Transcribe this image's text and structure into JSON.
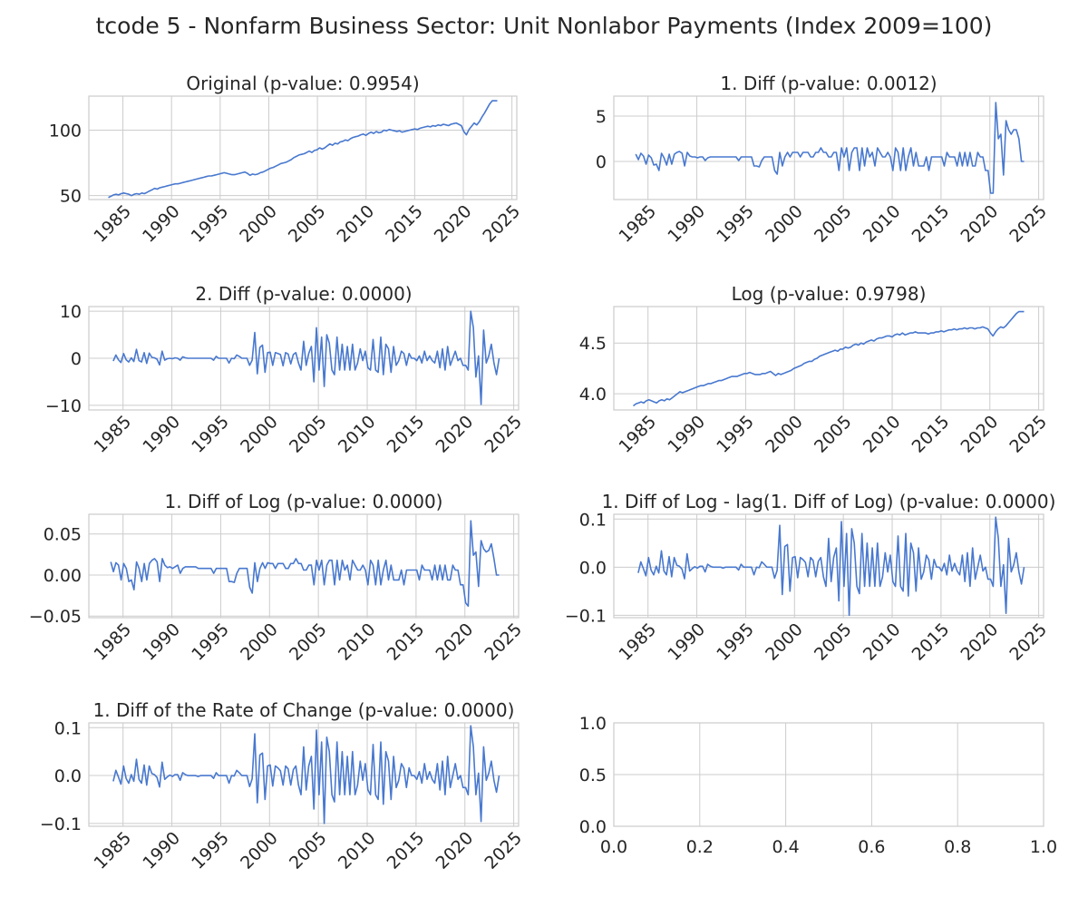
{
  "figure": {
    "suptitle": "tcode 5 - Nonfarm Business Sector: Unit Nonlabor Payments (Index 2009=100)",
    "line_color": "#4878cf",
    "grid_color": "#cccccc",
    "axis_color": "#cccccc"
  },
  "chart_data": [
    {
      "type": "line",
      "title": "Original (p-value: 0.9954)",
      "grid": true,
      "xlim": [
        1981.5,
        2025.5
      ],
      "ylim": [
        47,
        126
      ],
      "xticks": [
        1985,
        1990,
        1995,
        2000,
        2005,
        2010,
        2015,
        2020,
        2025
      ],
      "yticks": [
        50,
        100
      ],
      "ytick_labels": [
        "50",
        "100"
      ],
      "x_start": 1983.5,
      "x_end": 2023.5,
      "values": [
        48.5,
        49.5,
        50.5,
        51.0,
        50.5,
        51.5,
        52.0,
        51.5,
        51.0,
        50.0,
        51.0,
        51.5,
        51.0,
        52.0,
        51.5,
        52.5,
        53.5,
        54.5,
        55.5,
        55.0,
        56.0,
        56.5,
        57.0,
        57.5,
        58.0,
        58.5,
        59.0,
        59.0,
        59.5,
        60.0,
        60.5,
        61.0,
        61.5,
        62.0,
        62.5,
        63.0,
        63.5,
        64.0,
        64.5,
        65.0,
        65.0,
        65.5,
        66.0,
        66.5,
        67.0,
        67.5,
        67.0,
        66.5,
        66.0,
        66.0,
        66.5,
        67.0,
        67.5,
        68.0,
        67.0,
        65.5,
        66.5,
        66.0,
        66.5,
        67.5,
        68.0,
        69.0,
        70.0,
        71.0,
        71.5,
        72.5,
        73.5,
        74.5,
        75.0,
        75.5,
        76.5,
        77.5,
        79.0,
        80.0,
        81.0,
        81.5,
        82.0,
        83.0,
        84.0,
        83.0,
        84.5,
        85.0,
        86.5,
        85.5,
        86.5,
        88.0,
        89.5,
        88.5,
        90.0,
        89.5,
        91.0,
        91.5,
        92.5,
        92.0,
        93.5,
        94.5,
        95.0,
        95.5,
        96.5,
        97.0,
        96.0,
        97.5,
        98.5,
        97.5,
        99.0,
        98.0,
        98.5,
        100.0,
        99.5,
        100.5,
        100.0,
        99.5,
        99.0,
        99.5,
        98.5,
        99.0,
        99.5,
        100.0,
        100.5,
        101.0,
        100.5,
        101.5,
        102.0,
        102.5,
        103.0,
        102.5,
        103.5,
        103.0,
        104.0,
        103.5,
        104.5,
        104.0,
        103.5,
        104.5,
        105.0,
        105.5,
        104.5,
        103.5,
        99.0,
        96.5,
        100.5,
        103.0,
        105.5,
        104.0,
        106.5,
        110.0,
        113.0,
        116.5,
        120.0,
        122.5,
        122.5,
        122.5
      ]
    },
    {
      "type": "line",
      "title": "1. Diff (p-value: 0.0012)",
      "grid": true,
      "xlim": [
        1981.5,
        2025.5
      ],
      "ylim": [
        -4.2,
        7.2
      ],
      "xticks": [
        1985,
        1990,
        1995,
        2000,
        2005,
        2010,
        2015,
        2020,
        2025
      ],
      "yticks": [
        0,
        5
      ],
      "ytick_labels": [
        "0",
        "5"
      ],
      "x_start": 1983.75,
      "x_end": 2023.5,
      "values": [
        0.8,
        0.2,
        0.9,
        0.6,
        -0.3,
        0.7,
        0.4,
        -0.4,
        -0.3,
        -1.0,
        0.9,
        0.4,
        -0.4,
        0.8,
        -0.3,
        0.8,
        1.0,
        1.1,
        0.9,
        -0.5,
        1.0,
        0.6,
        0.5,
        0.5,
        0.4,
        0.5,
        0.5,
        0.1,
        0.4,
        0.5,
        0.5,
        0.5,
        0.5,
        0.5,
        0.5,
        0.5,
        0.5,
        0.5,
        0.5,
        0.5,
        0.1,
        0.5,
        0.5,
        0.5,
        0.5,
        0.5,
        -0.5,
        -0.5,
        -0.6,
        0.1,
        0.5,
        0.5,
        0.5,
        0.5,
        -1.0,
        -1.4,
        1.0,
        -0.5,
        0.5,
        1.0,
        0.5,
        1.0,
        1.0,
        1.0,
        0.5,
        1.0,
        1.0,
        1.0,
        0.5,
        0.5,
        1.0,
        1.0,
        1.5,
        1.0,
        1.0,
        0.5,
        0.5,
        1.0,
        1.0,
        -1.0,
        1.5,
        0.5,
        1.5,
        -1.0,
        1.0,
        1.5,
        1.5,
        -1.0,
        1.5,
        -0.5,
        1.5,
        0.5,
        1.0,
        -0.5,
        1.5,
        1.0,
        0.5,
        0.5,
        1.0,
        0.5,
        -1.0,
        1.5,
        1.0,
        -1.0,
        1.5,
        -1.0,
        0.5,
        1.5,
        -0.5,
        1.0,
        -0.5,
        -0.5,
        -0.5,
        0.5,
        -1.0,
        0.5,
        0.5,
        0.5,
        0.5,
        0.5,
        -0.5,
        1.0,
        0.5,
        0.5,
        0.5,
        -0.5,
        1.0,
        -0.5,
        1.0,
        -0.5,
        1.0,
        -0.5,
        -0.5,
        1.0,
        0.5,
        0.5,
        -1.0,
        -1.0,
        -3.5,
        -3.5,
        6.5,
        2.5,
        3.0,
        -1.5,
        4.5,
        3.5,
        3.0,
        3.5,
        3.5,
        2.5,
        0.0,
        0.0
      ]
    },
    {
      "type": "line",
      "title": "2. Diff (p-value: 0.0000)",
      "grid": true,
      "xlim": [
        1981.5,
        2025.5
      ],
      "ylim": [
        -11,
        11
      ],
      "xticks": [
        1985,
        1990,
        1995,
        2000,
        2005,
        2010,
        2015,
        2020,
        2025
      ],
      "yticks": [
        -10,
        0,
        10
      ],
      "ytick_labels": [
        "−10",
        "0",
        "10"
      ],
      "x_start": 1984.0,
      "x_end": 2023.5,
      "values": [
        -0.6,
        0.7,
        -0.3,
        -0.9,
        1.0,
        -0.3,
        -0.8,
        0.1,
        -0.7,
        1.9,
        -0.5,
        -0.8,
        1.2,
        -1.1,
        1.1,
        0.2,
        0.1,
        -0.2,
        -1.4,
        1.5,
        -0.4,
        -0.1,
        0.0,
        -0.1,
        0.1,
        0.0,
        -0.4,
        0.3,
        0.1,
        0.0,
        0.0,
        0.0,
        0.0,
        0.0,
        0.0,
        0.0,
        0.0,
        0.0,
        0.0,
        -0.4,
        0.4,
        0.0,
        0.0,
        0.0,
        0.0,
        -1.0,
        0.0,
        -0.1,
        0.7,
        0.4,
        0.0,
        0.0,
        0.0,
        -1.5,
        -0.4,
        5.5,
        -3.3,
        2.3,
        2.8,
        -3.0,
        1.2,
        1.3,
        -1.5,
        1.2,
        1.0,
        0.8,
        -1.6,
        1.2,
        0.9,
        -1.2,
        0.8,
        1.2,
        -1.0,
        -2.5,
        3.6,
        -1.5,
        1.0,
        2.5,
        -5.0,
        6.5,
        -2.5,
        4.5,
        -6.0,
        5.0,
        3.2,
        -2.5,
        -3.5,
        4.5,
        -2.5,
        3.0,
        -2.5,
        2.5,
        -2.5,
        3.0,
        -2.5,
        -1.0,
        2.0,
        -0.5,
        1.5,
        -2.0,
        -2.5,
        4.0,
        -2.5,
        -3.0,
        4.5,
        -3.5,
        3.0,
        2.0,
        -3.0,
        2.5,
        -1.5,
        -0.5,
        1.5,
        1.0,
        -1.5,
        1.0,
        0.0,
        0.0,
        -0.5,
        0.5,
        -1.0,
        1.5,
        -0.5,
        0.5,
        -0.5,
        -1.0,
        1.5,
        -2.0,
        2.0,
        -2.5,
        2.5,
        -1.5,
        0.0,
        1.5,
        -0.5,
        0.0,
        -1.5,
        -1.5,
        -2.5,
        10.0,
        6.5,
        -4.0,
        0.5,
        -9.8,
        6.0,
        -1.0,
        0.5,
        3.0,
        -1.0,
        -3.5,
        0.0
      ]
    },
    {
      "type": "line",
      "title": "Log (p-value: 0.9798)",
      "grid": true,
      "xlim": [
        1981.5,
        2025.5
      ],
      "ylim": [
        3.84,
        4.86
      ],
      "xticks": [
        1985,
        1990,
        1995,
        2000,
        2005,
        2010,
        2015,
        2020,
        2025
      ],
      "yticks": [
        4.0,
        4.5
      ],
      "ytick_labels": [
        "4.0",
        "4.5"
      ],
      "x_start": 1983.5,
      "x_end": 2023.5,
      "values": [
        3.88,
        3.9,
        3.91,
        3.92,
        3.91,
        3.93,
        3.94,
        3.93,
        3.92,
        3.91,
        3.93,
        3.94,
        3.93,
        3.95,
        3.94,
        3.96,
        3.98,
        4.0,
        4.02,
        4.01,
        4.02,
        4.03,
        4.04,
        4.05,
        4.06,
        4.07,
        4.08,
        4.08,
        4.09,
        4.1,
        4.1,
        4.11,
        4.12,
        4.13,
        4.13,
        4.14,
        4.15,
        4.16,
        4.17,
        4.17,
        4.17,
        4.18,
        4.19,
        4.2,
        4.2,
        4.21,
        4.2,
        4.19,
        4.19,
        4.19,
        4.2,
        4.2,
        4.21,
        4.22,
        4.2,
        4.18,
        4.2,
        4.19,
        4.2,
        4.21,
        4.22,
        4.23,
        4.25,
        4.26,
        4.27,
        4.28,
        4.3,
        4.31,
        4.32,
        4.32,
        4.34,
        4.35,
        4.37,
        4.38,
        4.39,
        4.4,
        4.41,
        4.42,
        4.43,
        4.42,
        4.44,
        4.44,
        4.46,
        4.45,
        4.46,
        4.48,
        4.49,
        4.48,
        4.5,
        4.49,
        4.51,
        4.52,
        4.53,
        4.52,
        4.54,
        4.55,
        4.55,
        4.56,
        4.57,
        4.57,
        4.56,
        4.58,
        4.59,
        4.58,
        4.6,
        4.58,
        4.59,
        4.6,
        4.6,
        4.61,
        4.6,
        4.6,
        4.6,
        4.6,
        4.59,
        4.6,
        4.6,
        4.61,
        4.61,
        4.62,
        4.61,
        4.62,
        4.63,
        4.63,
        4.64,
        4.63,
        4.64,
        4.64,
        4.65,
        4.64,
        4.65,
        4.65,
        4.64,
        4.65,
        4.65,
        4.66,
        4.65,
        4.64,
        4.6,
        4.57,
        4.61,
        4.64,
        4.66,
        4.65,
        4.67,
        4.7,
        4.73,
        4.76,
        4.79,
        4.81,
        4.81,
        4.81
      ]
    },
    {
      "type": "line",
      "title": "1. Diff of Log (p-value: 0.0000)",
      "grid": true,
      "xlim": [
        1981.5,
        2025.5
      ],
      "ylim": [
        -0.052,
        0.074
      ],
      "xticks": [
        1985,
        1990,
        1995,
        2000,
        2005,
        2010,
        2015,
        2020,
        2025
      ],
      "yticks": [
        -0.05,
        0.0,
        0.05
      ],
      "ytick_labels": [
        "−0.05",
        "0.00",
        "0.05"
      ],
      "x_start": 1983.75,
      "x_end": 2023.5,
      "values": [
        0.016,
        0.004,
        0.015,
        0.012,
        -0.006,
        0.014,
        0.008,
        -0.008,
        -0.006,
        -0.018,
        0.016,
        0.008,
        -0.008,
        0.014,
        -0.006,
        0.014,
        0.018,
        0.02,
        0.016,
        -0.008,
        0.02,
        0.012,
        0.009,
        0.01,
        0.008,
        0.01,
        0.012,
        0.002,
        0.008,
        0.01,
        0.01,
        0.01,
        0.01,
        0.01,
        0.008,
        0.008,
        0.008,
        0.008,
        0.008,
        0.008,
        0.002,
        0.008,
        0.008,
        0.008,
        0.008,
        0.008,
        -0.008,
        -0.008,
        -0.009,
        0.002,
        0.008,
        0.008,
        0.008,
        0.008,
        -0.015,
        -0.022,
        0.015,
        -0.008,
        0.008,
        0.015,
        0.008,
        0.015,
        0.014,
        0.014,
        0.008,
        0.014,
        0.014,
        0.014,
        0.008,
        0.008,
        0.014,
        0.014,
        0.02,
        0.014,
        0.014,
        0.006,
        0.006,
        0.012,
        0.012,
        -0.012,
        0.018,
        0.006,
        0.018,
        -0.012,
        0.012,
        0.018,
        0.018,
        -0.012,
        0.018,
        -0.006,
        0.018,
        0.006,
        0.012,
        -0.006,
        0.018,
        0.012,
        0.006,
        0.006,
        0.012,
        0.006,
        -0.012,
        0.018,
        0.012,
        -0.012,
        0.018,
        -0.012,
        0.006,
        0.018,
        -0.006,
        0.012,
        -0.006,
        -0.006,
        -0.006,
        0.006,
        -0.012,
        0.006,
        0.006,
        0.006,
        0.006,
        0.006,
        -0.006,
        0.012,
        0.006,
        0.006,
        0.006,
        -0.006,
        0.012,
        -0.006,
        0.012,
        -0.006,
        0.012,
        -0.006,
        -0.006,
        0.012,
        0.006,
        0.006,
        -0.012,
        -0.012,
        -0.034,
        -0.038,
        0.066,
        0.024,
        0.028,
        -0.014,
        0.042,
        0.032,
        0.028,
        0.03,
        0.038,
        0.02,
        0.0,
        0.0
      ]
    },
    {
      "type": "line",
      "title": "1. Diff of Log - lag(1. Diff of Log) (p-value: 0.0000)",
      "grid": true,
      "xlim": [
        1981.5,
        2025.5
      ],
      "ylim": [
        -0.105,
        0.11
      ],
      "xticks": [
        1985,
        1990,
        1995,
        2000,
        2005,
        2010,
        2015,
        2020,
        2025
      ],
      "yticks": [
        -0.1,
        0.0,
        0.1
      ],
      "ytick_labels": [
        "−0.1",
        "0.0",
        "0.1"
      ],
      "x_start": 1984.0,
      "x_end": 2023.5,
      "values": [
        -0.012,
        0.011,
        -0.003,
        -0.018,
        0.02,
        -0.006,
        -0.016,
        0.002,
        -0.012,
        0.034,
        -0.008,
        -0.016,
        0.022,
        -0.02,
        0.02,
        0.004,
        0.002,
        -0.004,
        -0.024,
        0.028,
        -0.008,
        -0.003,
        0.001,
        -0.002,
        0.002,
        0.002,
        -0.01,
        0.006,
        0.002,
        0.0,
        0.0,
        0.0,
        0.0,
        -0.002,
        0.0,
        0.0,
        0.0,
        0.0,
        0.0,
        -0.006,
        0.006,
        0.0,
        0.0,
        0.0,
        0.0,
        -0.016,
        0.0,
        -0.001,
        0.011,
        0.006,
        0.0,
        0.0,
        0.0,
        -0.023,
        -0.007,
        0.087,
        -0.057,
        0.043,
        0.047,
        -0.05,
        0.02,
        0.022,
        -0.022,
        0.02,
        0.016,
        0.01,
        -0.02,
        0.02,
        0.014,
        -0.02,
        0.012,
        0.02,
        -0.02,
        -0.04,
        0.06,
        -0.03,
        0.02,
        0.04,
        -0.07,
        0.095,
        -0.04,
        0.07,
        -0.1,
        0.08,
        0.05,
        -0.04,
        -0.055,
        0.07,
        -0.04,
        0.05,
        -0.04,
        0.04,
        -0.04,
        0.05,
        -0.04,
        -0.02,
        0.03,
        -0.01,
        0.025,
        -0.03,
        -0.04,
        0.065,
        -0.04,
        -0.05,
        0.07,
        -0.06,
        0.05,
        0.03,
        -0.05,
        0.04,
        -0.025,
        -0.01,
        0.025,
        0.015,
        -0.025,
        0.016,
        0.0,
        0.0,
        -0.008,
        0.008,
        -0.016,
        0.025,
        -0.008,
        0.008,
        -0.008,
        -0.016,
        0.025,
        -0.03,
        0.03,
        -0.04,
        0.04,
        -0.025,
        0.0,
        0.025,
        -0.008,
        0.0,
        -0.025,
        -0.025,
        -0.04,
        0.104,
        0.06,
        -0.04,
        0.005,
        -0.096,
        0.06,
        -0.01,
        0.005,
        0.03,
        -0.01,
        -0.035,
        0.0
      ]
    },
    {
      "type": "line",
      "title": "1. Diff of the Rate of Change (p-value: 0.0000)",
      "grid": true,
      "xlim": [
        1981.5,
        2025.5
      ],
      "ylim": [
        -0.106,
        0.11
      ],
      "xticks": [
        1985,
        1990,
        1995,
        2000,
        2005,
        2010,
        2015,
        2020,
        2025
      ],
      "yticks": [
        -0.1,
        0.0,
        0.1
      ],
      "ytick_labels": [
        "−0.1",
        "0.0",
        "0.1"
      ],
      "x_start": 1984.0,
      "x_end": 2023.5,
      "values": [
        -0.012,
        0.011,
        -0.003,
        -0.018,
        0.02,
        -0.006,
        -0.016,
        0.002,
        -0.012,
        0.034,
        -0.008,
        -0.016,
        0.022,
        -0.02,
        0.02,
        0.004,
        0.002,
        -0.004,
        -0.024,
        0.028,
        -0.008,
        -0.003,
        0.001,
        -0.002,
        0.002,
        0.002,
        -0.01,
        0.006,
        0.002,
        0.0,
        0.0,
        0.0,
        0.0,
        -0.002,
        0.0,
        0.0,
        0.0,
        0.0,
        0.0,
        -0.006,
        0.006,
        0.0,
        0.0,
        0.0,
        0.0,
        -0.016,
        0.0,
        -0.001,
        0.011,
        0.006,
        0.0,
        0.0,
        0.0,
        -0.023,
        -0.007,
        0.087,
        -0.057,
        0.043,
        0.047,
        -0.05,
        0.02,
        0.022,
        -0.022,
        0.02,
        0.016,
        0.01,
        -0.02,
        0.02,
        0.014,
        -0.02,
        0.012,
        0.02,
        -0.02,
        -0.04,
        0.06,
        -0.03,
        0.02,
        0.04,
        -0.07,
        0.095,
        -0.04,
        0.07,
        -0.1,
        0.08,
        0.05,
        -0.04,
        -0.055,
        0.07,
        -0.04,
        0.05,
        -0.04,
        0.04,
        -0.04,
        0.05,
        -0.04,
        -0.02,
        0.03,
        -0.01,
        0.025,
        -0.03,
        -0.04,
        0.065,
        -0.04,
        -0.05,
        0.07,
        -0.06,
        0.05,
        0.03,
        -0.05,
        0.04,
        -0.025,
        -0.01,
        0.025,
        0.015,
        -0.025,
        0.016,
        0.0,
        0.0,
        -0.008,
        0.008,
        -0.016,
        0.025,
        -0.008,
        0.008,
        -0.008,
        -0.016,
        0.025,
        -0.03,
        0.03,
        -0.04,
        0.04,
        -0.025,
        0.0,
        0.025,
        -0.008,
        0.0,
        -0.025,
        -0.025,
        -0.04,
        0.104,
        0.06,
        -0.04,
        0.005,
        -0.096,
        0.06,
        -0.01,
        0.005,
        0.03,
        -0.01,
        -0.035,
        0.0
      ]
    },
    {
      "type": "line",
      "title": "",
      "grid": true,
      "empty": true,
      "xlim": [
        0,
        1
      ],
      "ylim": [
        0,
        1
      ],
      "xticks": [
        0.0,
        0.2,
        0.4,
        0.6,
        0.8,
        1.0
      ],
      "xtick_labels": [
        "0.0",
        "0.2",
        "0.4",
        "0.6",
        "0.8",
        "1.0"
      ],
      "yticks": [
        0.0,
        0.5,
        1.0
      ],
      "ytick_labels": [
        "0.0",
        "0.5",
        "1.0"
      ],
      "values": []
    }
  ]
}
